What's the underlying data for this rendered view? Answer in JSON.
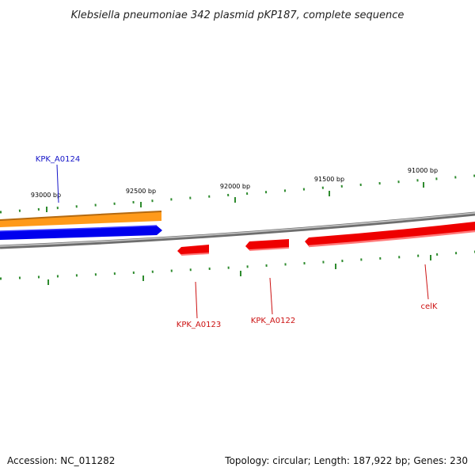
{
  "title": "Klebsiella pneumoniae 342 plasmid pKP187, complete sequence",
  "footer": {
    "accession": "Accession: NC_011282",
    "summary": "Topology: circular; Length: 187,922 bp; Genes: 230"
  },
  "colors": {
    "backbone": "#888888",
    "tick": "#2e8b2e",
    "forward_gene": "#0000ee",
    "orange_feature": "#ff9a1a",
    "reverse_gene": "#ee0000",
    "forward_label": "#1515c8",
    "reverse_label": "#cc1111"
  },
  "ticks": {
    "outer_labels": [
      "93000 bp",
      "92500 bp",
      "92000 bp",
      "91500 bp",
      "91000 bp"
    ]
  },
  "genes": {
    "forward": [
      {
        "label": "KPK_A0124"
      }
    ],
    "reverse": [
      {
        "label": "KPK_A0123"
      },
      {
        "label": "KPK_A0122"
      },
      {
        "label": "celK"
      }
    ]
  }
}
